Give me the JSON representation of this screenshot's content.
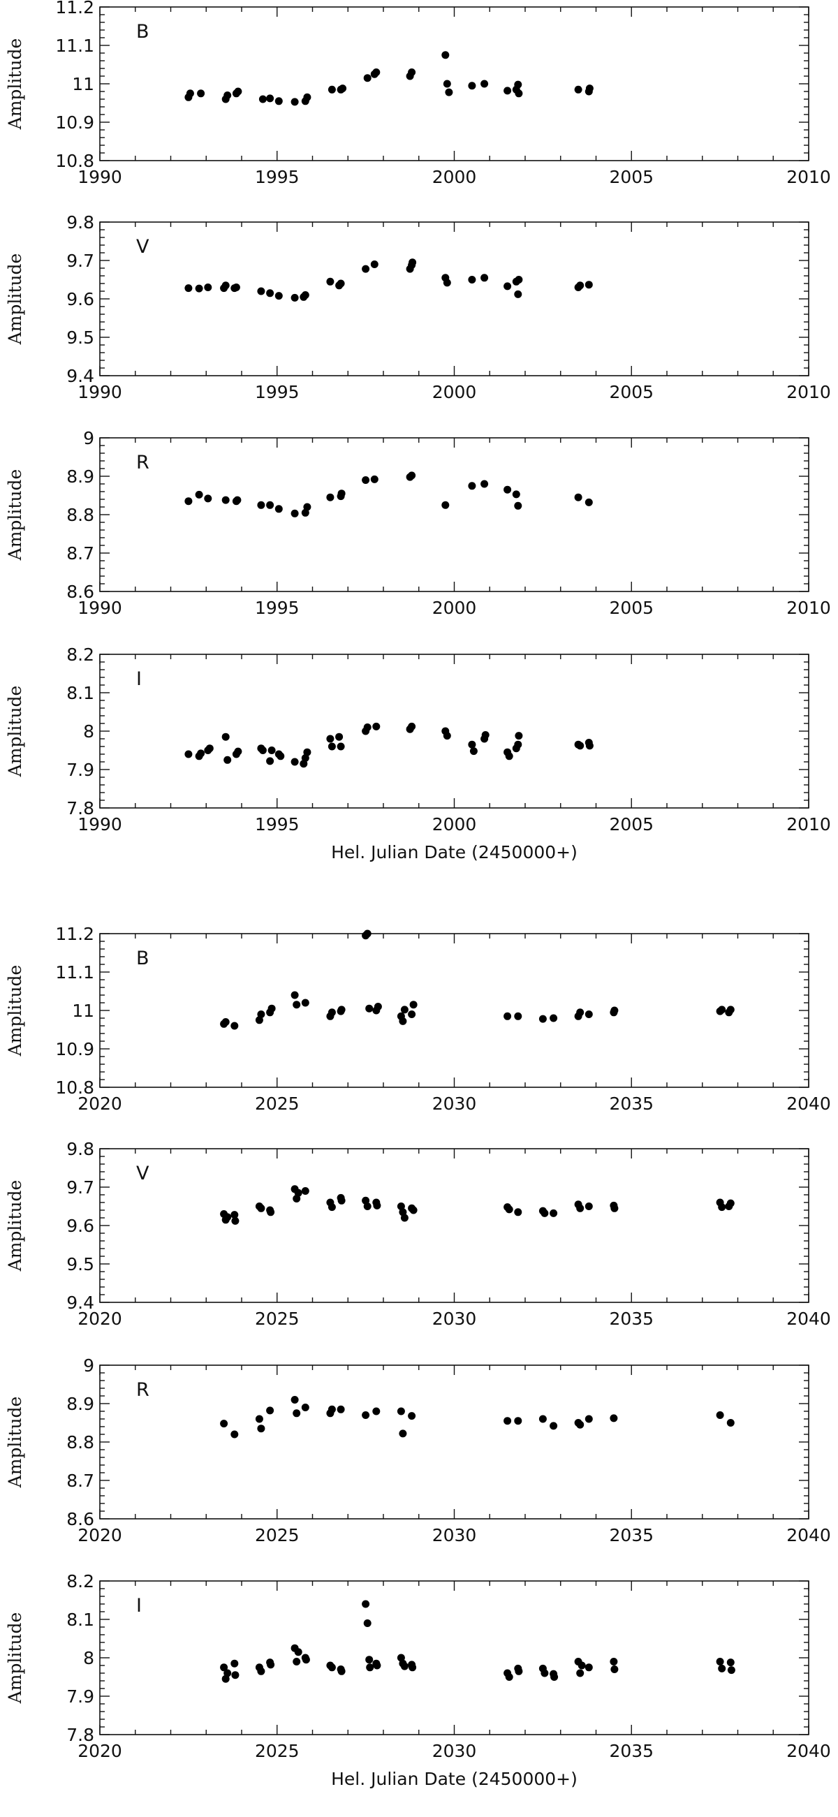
{
  "chart_data": [
    {
      "type": "scatter",
      "group": "top",
      "band": "B",
      "ylabel": "Amplitude",
      "xlabel": "",
      "xlim": [
        1990,
        2010
      ],
      "ylim": [
        10.8,
        11.2
      ],
      "xticks": [
        "1990",
        "1995",
        "2000",
        "2005",
        "2010"
      ],
      "yticks": [
        "10.8",
        "10.9",
        "11",
        "11.1",
        "11.2"
      ],
      "grid": false,
      "points": [
        [
          1992.5,
          10.965
        ],
        [
          1992.55,
          10.975
        ],
        [
          1992.85,
          10.975
        ],
        [
          1993.55,
          10.96
        ],
        [
          1993.6,
          10.97
        ],
        [
          1993.85,
          10.975
        ],
        [
          1993.9,
          10.98
        ],
        [
          1994.6,
          10.96
        ],
        [
          1994.8,
          10.962
        ],
        [
          1995.05,
          10.955
        ],
        [
          1995.5,
          10.953
        ],
        [
          1995.8,
          10.955
        ],
        [
          1995.85,
          10.965
        ],
        [
          1996.55,
          10.985
        ],
        [
          1996.8,
          10.985
        ],
        [
          1996.85,
          10.988
        ],
        [
          1997.55,
          11.015
        ],
        [
          1997.75,
          11.025
        ],
        [
          1997.8,
          11.03
        ],
        [
          1998.75,
          11.02
        ],
        [
          1998.8,
          11.03
        ],
        [
          1999.75,
          11.075
        ],
        [
          1999.8,
          11.0
        ],
        [
          1999.85,
          10.978
        ],
        [
          2000.5,
          10.995
        ],
        [
          2000.85,
          11.0
        ],
        [
          2001.5,
          10.982
        ],
        [
          2001.75,
          10.985
        ],
        [
          2001.8,
          10.998
        ],
        [
          2001.82,
          10.975
        ],
        [
          2003.5,
          10.985
        ],
        [
          2003.8,
          10.98
        ],
        [
          2003.82,
          10.988
        ]
      ]
    },
    {
      "type": "scatter",
      "group": "top",
      "band": "V",
      "ylabel": "Amplitude",
      "xlabel": "",
      "xlim": [
        1990,
        2010
      ],
      "ylim": [
        9.4,
        9.8
      ],
      "xticks": [
        "1990",
        "1995",
        "2000",
        "2005",
        "2010"
      ],
      "yticks": [
        "9.4",
        "9.5",
        "9.6",
        "9.7",
        "9.8"
      ],
      "grid": false,
      "points": [
        [
          1992.5,
          9.628
        ],
        [
          1992.8,
          9.627
        ],
        [
          1993.05,
          9.63
        ],
        [
          1993.5,
          9.628
        ],
        [
          1993.55,
          9.635
        ],
        [
          1993.8,
          9.628
        ],
        [
          1993.85,
          9.63
        ],
        [
          1994.55,
          9.62
        ],
        [
          1994.8,
          9.615
        ],
        [
          1995.05,
          9.608
        ],
        [
          1995.5,
          9.603
        ],
        [
          1995.75,
          9.605
        ],
        [
          1995.8,
          9.61
        ],
        [
          1996.5,
          9.645
        ],
        [
          1996.75,
          9.635
        ],
        [
          1996.8,
          9.64
        ],
        [
          1997.5,
          9.678
        ],
        [
          1997.75,
          9.69
        ],
        [
          1998.75,
          9.678
        ],
        [
          1998.8,
          9.688
        ],
        [
          1998.82,
          9.695
        ],
        [
          1999.75,
          9.655
        ],
        [
          1999.8,
          9.642
        ],
        [
          2000.5,
          9.65
        ],
        [
          2000.85,
          9.655
        ],
        [
          2001.5,
          9.633
        ],
        [
          2001.75,
          9.645
        ],
        [
          2001.8,
          9.612
        ],
        [
          2001.82,
          9.65
        ],
        [
          2003.5,
          9.63
        ],
        [
          2003.55,
          9.635
        ],
        [
          2003.8,
          9.637
        ]
      ]
    },
    {
      "type": "scatter",
      "group": "top",
      "band": "R",
      "ylabel": "Amplitude",
      "xlabel": "",
      "xlim": [
        1990,
        2010
      ],
      "ylim": [
        8.6,
        9.0
      ],
      "xticks": [
        "1990",
        "1995",
        "2000",
        "2005",
        "2010"
      ],
      "yticks": [
        "8.6",
        "8.7",
        "8.8",
        "8.9",
        "9"
      ],
      "grid": false,
      "points": [
        [
          1992.5,
          8.835
        ],
        [
          1992.8,
          8.852
        ],
        [
          1993.05,
          8.842
        ],
        [
          1993.55,
          8.838
        ],
        [
          1993.85,
          8.835
        ],
        [
          1993.88,
          8.838
        ],
        [
          1994.55,
          8.825
        ],
        [
          1994.8,
          8.825
        ],
        [
          1995.05,
          8.815
        ],
        [
          1995.5,
          8.803
        ],
        [
          1995.8,
          8.805
        ],
        [
          1995.85,
          8.82
        ],
        [
          1996.5,
          8.845
        ],
        [
          1996.8,
          8.848
        ],
        [
          1996.82,
          8.855
        ],
        [
          1997.5,
          8.89
        ],
        [
          1997.75,
          8.892
        ],
        [
          1998.75,
          8.898
        ],
        [
          1998.8,
          8.902
        ],
        [
          1999.75,
          8.825
        ],
        [
          2000.5,
          8.875
        ],
        [
          2000.85,
          8.88
        ],
        [
          2001.5,
          8.865
        ],
        [
          2001.75,
          8.853
        ],
        [
          2001.8,
          8.823
        ],
        [
          2003.5,
          8.845
        ],
        [
          2003.8,
          8.832
        ]
      ]
    },
    {
      "type": "scatter",
      "group": "top",
      "band": "I",
      "ylabel": "Amplitude",
      "xlabel": "Hel. Julian Date (2450000+)",
      "xlim": [
        1990,
        2010
      ],
      "ylim": [
        7.8,
        8.2
      ],
      "xticks": [
        "1990",
        "1995",
        "2000",
        "2005",
        "2010"
      ],
      "yticks": [
        "7.8",
        "7.9",
        "8",
        "8.1",
        "8.2"
      ],
      "grid": false,
      "points": [
        [
          1992.5,
          7.94
        ],
        [
          1992.8,
          7.935
        ],
        [
          1992.85,
          7.942
        ],
        [
          1993.05,
          7.95
        ],
        [
          1993.1,
          7.955
        ],
        [
          1993.55,
          7.985
        ],
        [
          1993.6,
          7.925
        ],
        [
          1993.85,
          7.94
        ],
        [
          1993.9,
          7.947
        ],
        [
          1994.55,
          7.955
        ],
        [
          1994.6,
          7.95
        ],
        [
          1994.8,
          7.922
        ],
        [
          1994.85,
          7.95
        ],
        [
          1995.05,
          7.94
        ],
        [
          1995.1,
          7.935
        ],
        [
          1995.5,
          7.92
        ],
        [
          1995.75,
          7.915
        ],
        [
          1995.8,
          7.93
        ],
        [
          1995.85,
          7.945
        ],
        [
          1996.5,
          7.98
        ],
        [
          1996.55,
          7.96
        ],
        [
          1996.75,
          7.985
        ],
        [
          1996.8,
          7.96
        ],
        [
          1997.5,
          8.0
        ],
        [
          1997.55,
          8.01
        ],
        [
          1997.8,
          8.012
        ],
        [
          1998.75,
          8.005
        ],
        [
          1998.8,
          8.012
        ],
        [
          1999.75,
          8.0
        ],
        [
          1999.8,
          7.988
        ],
        [
          2000.5,
          7.965
        ],
        [
          2000.55,
          7.948
        ],
        [
          2000.85,
          7.98
        ],
        [
          2000.88,
          7.99
        ],
        [
          2001.5,
          7.945
        ],
        [
          2001.55,
          7.935
        ],
        [
          2001.75,
          7.955
        ],
        [
          2001.8,
          7.965
        ],
        [
          2001.82,
          7.988
        ],
        [
          2003.5,
          7.965
        ],
        [
          2003.55,
          7.962
        ],
        [
          2003.8,
          7.97
        ],
        [
          2003.82,
          7.962
        ]
      ]
    },
    {
      "type": "scatter",
      "group": "bottom",
      "band": "B",
      "ylabel": "Amplitude",
      "xlabel": "",
      "xlim": [
        2020,
        2040
      ],
      "ylim": [
        10.8,
        11.2
      ],
      "xticks": [
        "2020",
        "2025",
        "2030",
        "2035",
        "2040"
      ],
      "yticks": [
        "10.8",
        "10.9",
        "11",
        "11.1",
        "11.2"
      ],
      "grid": false,
      "points": [
        [
          2023.5,
          10.965
        ],
        [
          2023.55,
          10.97
        ],
        [
          2023.8,
          10.96
        ],
        [
          2024.5,
          10.975
        ],
        [
          2024.55,
          10.99
        ],
        [
          2024.8,
          10.995
        ],
        [
          2024.85,
          11.005
        ],
        [
          2025.5,
          11.04
        ],
        [
          2025.55,
          11.015
        ],
        [
          2025.8,
          11.02
        ],
        [
          2026.5,
          10.985
        ],
        [
          2026.55,
          10.995
        ],
        [
          2026.8,
          10.998
        ],
        [
          2026.82,
          11.002
        ],
        [
          2027.5,
          11.195
        ],
        [
          2027.55,
          11.2
        ],
        [
          2027.6,
          11.005
        ],
        [
          2027.8,
          11.0
        ],
        [
          2027.85,
          11.01
        ],
        [
          2028.5,
          10.985
        ],
        [
          2028.55,
          10.972
        ],
        [
          2028.6,
          11.002
        ],
        [
          2028.8,
          10.99
        ],
        [
          2028.85,
          11.015
        ],
        [
          2031.5,
          10.985
        ],
        [
          2031.8,
          10.985
        ],
        [
          2032.5,
          10.978
        ],
        [
          2032.8,
          10.98
        ],
        [
          2033.5,
          10.985
        ],
        [
          2033.55,
          10.995
        ],
        [
          2033.8,
          10.99
        ],
        [
          2034.5,
          10.995
        ],
        [
          2034.52,
          11.0
        ],
        [
          2037.5,
          10.998
        ],
        [
          2037.55,
          11.002
        ],
        [
          2037.75,
          10.995
        ],
        [
          2037.8,
          11.002
        ]
      ]
    },
    {
      "type": "scatter",
      "group": "bottom",
      "band": "V",
      "ylabel": "Amplitude",
      "xlabel": "",
      "xlim": [
        2020,
        2040
      ],
      "ylim": [
        9.4,
        9.8
      ],
      "xticks": [
        "2020",
        "2025",
        "2030",
        "2035",
        "2040"
      ],
      "yticks": [
        "9.4",
        "9.5",
        "9.6",
        "9.7",
        "9.8"
      ],
      "grid": false,
      "points": [
        [
          2023.5,
          9.63
        ],
        [
          2023.55,
          9.615
        ],
        [
          2023.6,
          9.622
        ],
        [
          2023.8,
          9.628
        ],
        [
          2023.82,
          9.612
        ],
        [
          2024.5,
          9.65
        ],
        [
          2024.55,
          9.645
        ],
        [
          2024.8,
          9.64
        ],
        [
          2024.82,
          9.635
        ],
        [
          2025.5,
          9.695
        ],
        [
          2025.55,
          9.67
        ],
        [
          2025.6,
          9.685
        ],
        [
          2025.8,
          9.69
        ],
        [
          2026.5,
          9.66
        ],
        [
          2026.55,
          9.648
        ],
        [
          2026.8,
          9.672
        ],
        [
          2026.82,
          9.665
        ],
        [
          2027.5,
          9.665
        ],
        [
          2027.55,
          9.65
        ],
        [
          2027.8,
          9.66
        ],
        [
          2027.82,
          9.652
        ],
        [
          2028.5,
          9.65
        ],
        [
          2028.55,
          9.635
        ],
        [
          2028.6,
          9.62
        ],
        [
          2028.8,
          9.645
        ],
        [
          2028.85,
          9.64
        ],
        [
          2031.5,
          9.648
        ],
        [
          2031.55,
          9.642
        ],
        [
          2031.8,
          9.635
        ],
        [
          2032.5,
          9.638
        ],
        [
          2032.55,
          9.632
        ],
        [
          2032.8,
          9.632
        ],
        [
          2033.5,
          9.655
        ],
        [
          2033.55,
          9.645
        ],
        [
          2033.8,
          9.65
        ],
        [
          2034.5,
          9.652
        ],
        [
          2034.52,
          9.645
        ],
        [
          2037.5,
          9.66
        ],
        [
          2037.55,
          9.648
        ],
        [
          2037.75,
          9.65
        ],
        [
          2037.8,
          9.658
        ]
      ]
    },
    {
      "type": "scatter",
      "group": "bottom",
      "band": "R",
      "ylabel": "Amplitude",
      "xlabel": "",
      "xlim": [
        2020,
        2040
      ],
      "ylim": [
        8.6,
        9.0
      ],
      "xticks": [
        "2020",
        "2025",
        "2030",
        "2035",
        "2040"
      ],
      "yticks": [
        "8.6",
        "8.7",
        "8.8",
        "8.9",
        "9"
      ],
      "grid": false,
      "points": [
        [
          2023.5,
          8.848
        ],
        [
          2023.8,
          8.82
        ],
        [
          2024.5,
          8.86
        ],
        [
          2024.55,
          8.835
        ],
        [
          2024.8,
          8.882
        ],
        [
          2025.5,
          8.91
        ],
        [
          2025.55,
          8.875
        ],
        [
          2025.8,
          8.89
        ],
        [
          2026.5,
          8.875
        ],
        [
          2026.55,
          8.885
        ],
        [
          2026.8,
          8.885
        ],
        [
          2027.5,
          8.87
        ],
        [
          2027.8,
          8.88
        ],
        [
          2028.5,
          8.88
        ],
        [
          2028.55,
          8.822
        ],
        [
          2028.8,
          8.868
        ],
        [
          2031.5,
          8.855
        ],
        [
          2031.8,
          8.855
        ],
        [
          2032.5,
          8.86
        ],
        [
          2032.8,
          8.842
        ],
        [
          2033.5,
          8.85
        ],
        [
          2033.55,
          8.845
        ],
        [
          2033.8,
          8.86
        ],
        [
          2034.5,
          8.862
        ],
        [
          2037.5,
          8.87
        ],
        [
          2037.8,
          8.85
        ]
      ]
    },
    {
      "type": "scatter",
      "group": "bottom",
      "band": "I",
      "ylabel": "Amplitude",
      "xlabel": "Hel. Julian Date (2450000+)",
      "xlim": [
        2020,
        2040
      ],
      "ylim": [
        7.8,
        8.2
      ],
      "xticks": [
        "2020",
        "2025",
        "2030",
        "2035",
        "2040"
      ],
      "yticks": [
        "7.8",
        "7.9",
        "8",
        "8.1",
        "8.2"
      ],
      "grid": false,
      "points": [
        [
          2023.5,
          7.975
        ],
        [
          2023.55,
          7.945
        ],
        [
          2023.6,
          7.96
        ],
        [
          2023.8,
          7.985
        ],
        [
          2023.82,
          7.955
        ],
        [
          2024.5,
          7.975
        ],
        [
          2024.55,
          7.965
        ],
        [
          2024.8,
          7.988
        ],
        [
          2024.82,
          7.982
        ],
        [
          2025.5,
          8.025
        ],
        [
          2025.55,
          7.99
        ],
        [
          2025.6,
          8.015
        ],
        [
          2025.8,
          8.0
        ],
        [
          2025.82,
          7.995
        ],
        [
          2026.5,
          7.98
        ],
        [
          2026.55,
          7.975
        ],
        [
          2026.8,
          7.97
        ],
        [
          2026.82,
          7.965
        ],
        [
          2027.5,
          8.14
        ],
        [
          2027.55,
          8.09
        ],
        [
          2027.6,
          7.995
        ],
        [
          2027.62,
          7.975
        ],
        [
          2027.8,
          7.985
        ],
        [
          2027.82,
          7.98
        ],
        [
          2028.5,
          8.0
        ],
        [
          2028.55,
          7.985
        ],
        [
          2028.6,
          7.978
        ],
        [
          2028.8,
          7.982
        ],
        [
          2028.82,
          7.975
        ],
        [
          2031.5,
          7.96
        ],
        [
          2031.55,
          7.95
        ],
        [
          2031.8,
          7.972
        ],
        [
          2031.82,
          7.965
        ],
        [
          2032.5,
          7.972
        ],
        [
          2032.55,
          7.96
        ],
        [
          2032.8,
          7.958
        ],
        [
          2032.82,
          7.95
        ],
        [
          2033.5,
          7.99
        ],
        [
          2033.55,
          7.96
        ],
        [
          2033.6,
          7.98
        ],
        [
          2033.8,
          7.975
        ],
        [
          2034.5,
          7.99
        ],
        [
          2034.52,
          7.97
        ],
        [
          2037.5,
          7.99
        ],
        [
          2037.55,
          7.972
        ],
        [
          2037.8,
          7.988
        ],
        [
          2037.82,
          7.968
        ]
      ]
    }
  ]
}
